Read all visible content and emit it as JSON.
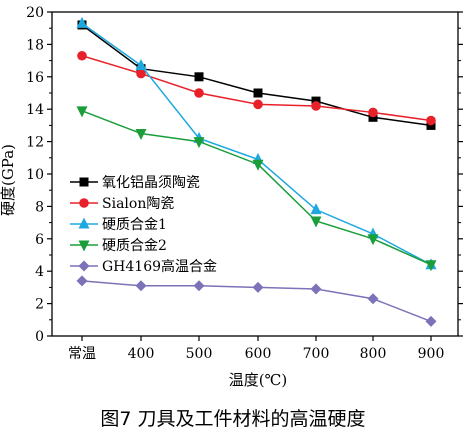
{
  "caption": "图7   刀具及工件材料的高温硬度",
  "chart_data": {
    "type": "line",
    "x": [
      "常温",
      "400",
      "500",
      "600",
      "700",
      "800",
      "900"
    ],
    "xlabel": "温度(℃)",
    "ylabel": "硬度(GPa)",
    "ylim": [
      0,
      20
    ],
    "yticks": [
      0,
      2,
      4,
      6,
      8,
      10,
      12,
      14,
      16,
      18,
      20
    ],
    "grid": false,
    "legend_position": "center-left",
    "series": [
      {
        "name": "氧化铝晶须陶瓷",
        "color": "#000000",
        "marker": "square",
        "values": [
          19.2,
          16.5,
          16.0,
          15.0,
          14.5,
          13.5,
          13.0
        ]
      },
      {
        "name": "Sialon陶瓷",
        "color": "#e8202a",
        "marker": "circle",
        "values": [
          17.3,
          16.2,
          15.0,
          14.3,
          14.2,
          13.8,
          13.3
        ]
      },
      {
        "name": "硬质合金1",
        "color": "#1ea8e0",
        "marker": "triangle-up",
        "values": [
          19.3,
          16.7,
          12.2,
          10.9,
          7.8,
          6.3,
          4.4
        ]
      },
      {
        "name": "硬质合金2",
        "color": "#1a9e3a",
        "marker": "triangle-down",
        "values": [
          13.9,
          12.5,
          12.0,
          10.6,
          7.1,
          6.0,
          4.4
        ]
      },
      {
        "name": "GH4169高温合金",
        "color": "#7b72b8",
        "marker": "diamond",
        "values": [
          3.4,
          3.1,
          3.1,
          3.0,
          2.9,
          2.3,
          0.9
        ]
      }
    ]
  }
}
